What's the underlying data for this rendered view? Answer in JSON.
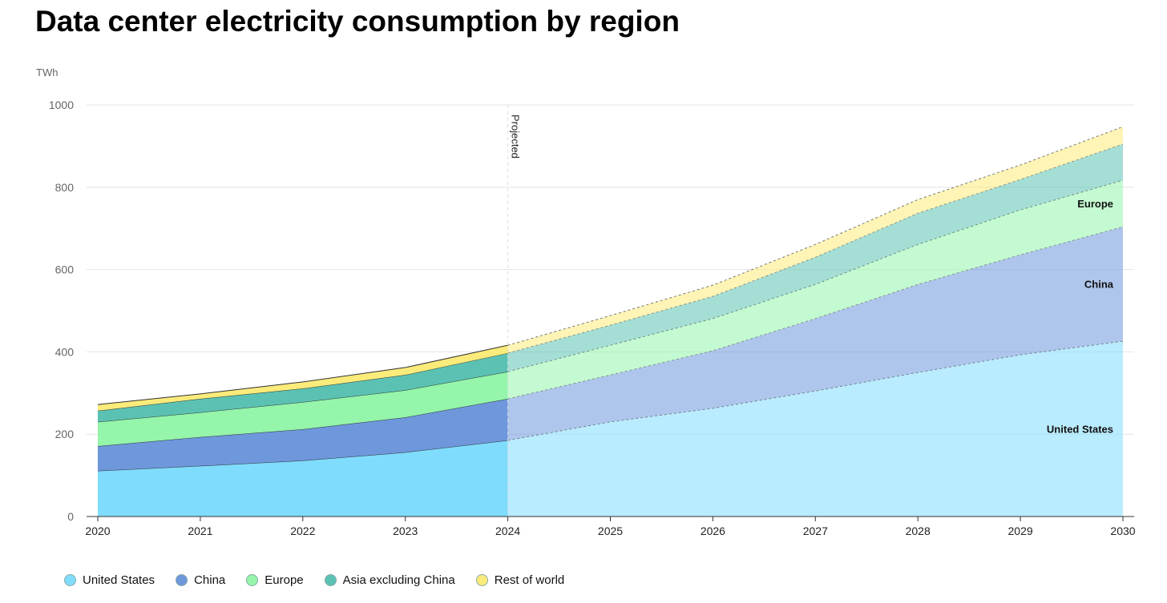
{
  "chart_data": {
    "type": "area",
    "title": "Data center electricity consumption by region",
    "ylabel": "TWh",
    "xlabel": "",
    "ylim": [
      0,
      1000
    ],
    "yticks": [
      0,
      200,
      400,
      600,
      800,
      1000
    ],
    "x": [
      2020,
      2021,
      2022,
      2023,
      2024,
      2025,
      2026,
      2027,
      2028,
      2029,
      2030
    ],
    "projected_from": 2024,
    "projected_label": "Projected",
    "stacked": true,
    "series": [
      {
        "name": "United States",
        "color": "#7fdcfd",
        "label": "United States",
        "values": [
          111,
          123,
          136,
          156,
          185,
          230,
          263,
          305,
          350,
          393,
          426
        ]
      },
      {
        "name": "China",
        "color": "#6e97dc",
        "label": "China",
        "values": [
          60,
          70,
          76,
          85,
          101,
          114,
          140,
          176,
          214,
          243,
          278
        ]
      },
      {
        "name": "Europe",
        "color": "#94f5ab",
        "label": "Europe",
        "values": [
          59,
          60,
          66,
          66,
          66,
          72,
          78,
          83,
          97,
          109,
          113
        ]
      },
      {
        "name": "Asia excluding China",
        "color": "#5bc2b3",
        "values": [
          27,
          33,
          33,
          37,
          45,
          49,
          54,
          66,
          76,
          74,
          88
        ]
      },
      {
        "name": "Rest of world",
        "color": "#fbeb7a",
        "values": [
          15,
          12,
          16,
          18,
          19,
          23,
          27,
          31,
          33,
          35,
          42
        ]
      }
    ],
    "legend": "bottom-left",
    "grid": true
  }
}
